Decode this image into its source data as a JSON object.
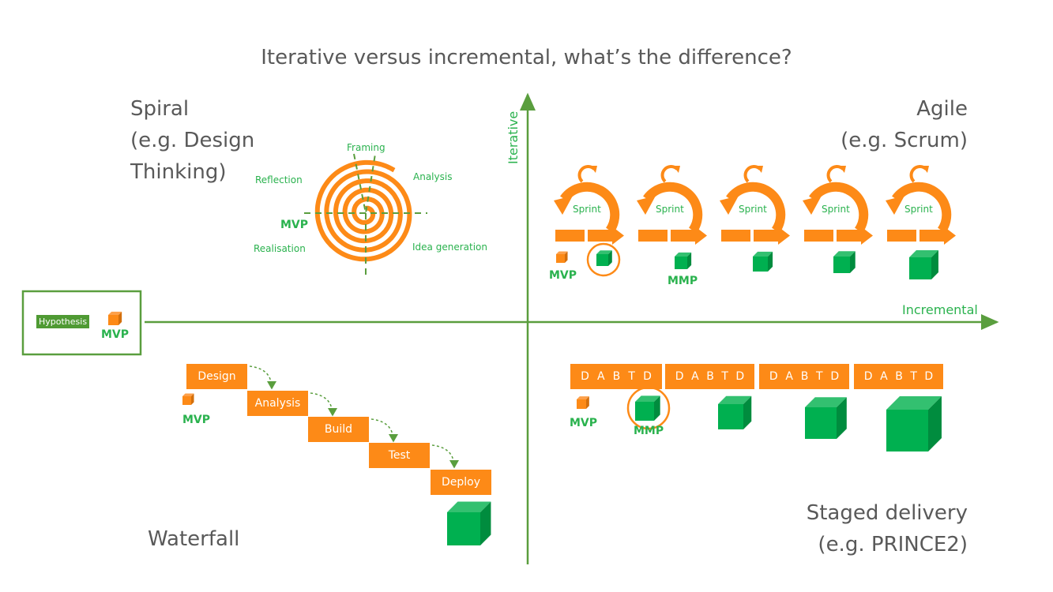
{
  "title": "Iterative versus incremental, what’s the difference?",
  "quadrants": {
    "spiral": [
      "Spiral",
      "(e.g. Design",
      "Thinking)"
    ],
    "agile": [
      "Agile",
      "(e.g. Scrum)"
    ],
    "waterfall": "Waterfall",
    "staged": [
      "Staged delivery",
      "(e.g. PRINCE2)"
    ]
  },
  "axes": {
    "y_label": "Iterative",
    "x_label": "Incremental"
  },
  "spiral_labels": {
    "framing": "Framing",
    "analysis": "Analysis",
    "reflection": "Reflection",
    "idea": "Idea generation",
    "realisation": "Realisation",
    "mvp": "MVP"
  },
  "hypothesis": {
    "label": "Hypothesis",
    "mvp": "MVP"
  },
  "agile": {
    "sprint_label": "Sprint",
    "sprint_count": 5,
    "mvp": "MVP",
    "mmp": "MMP"
  },
  "waterfall_steps": [
    "Design",
    "Analysis",
    "Build",
    "Test",
    "Deploy"
  ],
  "waterfall_mvp": "MVP",
  "staged": {
    "stages": [
      [
        "D",
        "A",
        "B",
        "T",
        "D"
      ],
      [
        "D",
        "A",
        "B",
        "T",
        "D"
      ],
      [
        "D",
        "A",
        "B",
        "T",
        "D"
      ],
      [
        "D",
        "A",
        "B",
        "T",
        "D"
      ]
    ],
    "mvp": "MVP",
    "mmp": "MMP"
  },
  "colors": {
    "orange": "#fd8a17",
    "green": "#00b050",
    "axis": "#5a9e3e",
    "text_green": "#2ab24e"
  }
}
